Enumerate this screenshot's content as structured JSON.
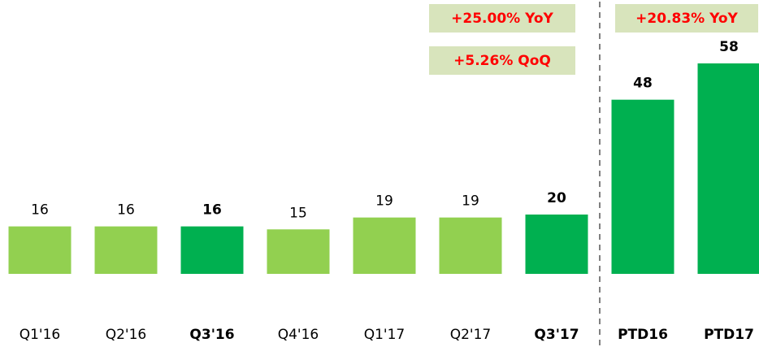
{
  "chart_data": [
    {
      "type": "bar",
      "categories": [
        "Q1'16",
        "Q2'16",
        "Q3'16",
        "Q4'16",
        "Q1'17",
        "Q2'17",
        "Q3'17"
      ],
      "values": [
        16,
        16,
        16,
        15,
        19,
        19,
        20
      ],
      "colors": [
        "#92d050",
        "#92d050",
        "#00b050",
        "#92d050",
        "#92d050",
        "#92d050",
        "#00b050"
      ],
      "emphasis": [
        false,
        false,
        true,
        false,
        false,
        false,
        true
      ],
      "annotations": [
        "+25.00% YoY",
        "+5.26% QoQ"
      ]
    },
    {
      "type": "bar",
      "categories": [
        "PTD16",
        "PTD17"
      ],
      "values": [
        48,
        58
      ],
      "colors": [
        "#00b050",
        "#00b050"
      ],
      "emphasis": [
        true,
        true
      ],
      "annotations": [
        "+20.83% YoY"
      ]
    }
  ]
}
